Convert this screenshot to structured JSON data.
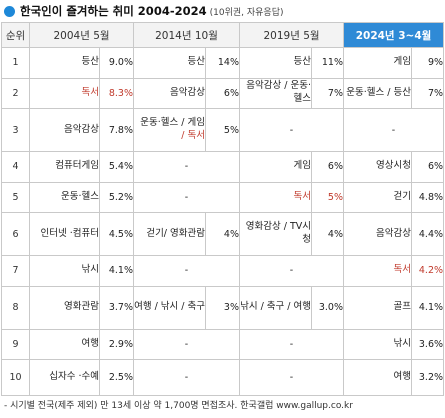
{
  "title": {
    "main": "한국인이 즐겨하는 취미 2004-2024",
    "sub": "(10위권, 자유응답)"
  },
  "colors": {
    "accent": "#2f8ad6",
    "highlight_text": "#c0392b",
    "title_dot": "#1e88d8"
  },
  "table": {
    "headers": [
      "순위",
      "2004년 5월",
      "2014년 10월",
      "2019년 5월",
      "2024년 3~4월"
    ],
    "rows": [
      {
        "rank": "1",
        "c2004": {
          "name": "등산",
          "pct": "9.0%"
        },
        "c2014": {
          "name": "등산",
          "pct": "14%"
        },
        "c2019": {
          "name": "등산",
          "pct": "11%"
        },
        "c2024": {
          "name": "게임",
          "pct": "9%"
        }
      },
      {
        "rank": "2",
        "c2004": {
          "name": "독서",
          "pct": "8.3%",
          "red": true
        },
        "c2014": {
          "name": "음악감상",
          "pct": "6%"
        },
        "c2019": {
          "name": "음악감상 / 운동·헬스",
          "pct": "7%"
        },
        "c2024": {
          "name": "운동·헬스 / 등산",
          "pct": "7%"
        }
      },
      {
        "rank": "3",
        "c2004": {
          "name": "음악감상",
          "pct": "7.8%"
        },
        "c2014": {
          "name": "운동·헬스 / 게임",
          "name_red": "/ 독서",
          "pct": "5%"
        },
        "c2019": {
          "dash": "-"
        },
        "c2024": {
          "dash": "-"
        }
      },
      {
        "rank": "4",
        "c2004": {
          "name": "컴퓨터게임",
          "pct": "5.4%"
        },
        "c2014": {
          "dash": "-"
        },
        "c2019": {
          "name": "게임",
          "pct": "6%"
        },
        "c2024": {
          "name": "영상시청",
          "pct": "6%"
        }
      },
      {
        "rank": "5",
        "c2004": {
          "name": "운동·헬스",
          "pct": "5.2%"
        },
        "c2014": {
          "dash": "-"
        },
        "c2019": {
          "name": "독서",
          "pct": "5%",
          "red": true
        },
        "c2024": {
          "name": "걷기",
          "pct": "4.8%"
        }
      },
      {
        "rank": "6",
        "c2004": {
          "name": "인터넷 ·컴퓨터",
          "pct": "4.5%"
        },
        "c2014": {
          "name": "걷기/ 영화관람",
          "pct": "4%"
        },
        "c2019": {
          "name": "영화감상 / TV시청",
          "pct": "4%"
        },
        "c2024": {
          "name": "음악감상",
          "pct": "4.4%"
        }
      },
      {
        "rank": "7",
        "c2004": {
          "name": "낚시",
          "pct": "4.1%"
        },
        "c2014": {
          "dash": "-"
        },
        "c2019": {
          "dash": "-"
        },
        "c2024": {
          "name": "독서",
          "pct": "4.2%",
          "red": true
        }
      },
      {
        "rank": "8",
        "c2004": {
          "name": "영화관람",
          "pct": "3.7%"
        },
        "c2014": {
          "name": "여행 / 낚시 / 축구",
          "pct": "3%"
        },
        "c2019": {
          "name": "낚시 / 축구 / 여행",
          "pct": "3.0%"
        },
        "c2024": {
          "name": "골프",
          "pct": "4.1%"
        }
      },
      {
        "rank": "9",
        "c2004": {
          "name": "여행",
          "pct": "2.9%"
        },
        "c2014": {
          "dash": "-"
        },
        "c2019": {
          "dash": "-"
        },
        "c2024": {
          "name": "낚시",
          "pct": "3.6%"
        }
      },
      {
        "rank": "10",
        "c2004": {
          "name": "십자수 ·수예",
          "pct": "2.5%"
        },
        "c2014": {
          "dash": "-"
        },
        "c2019": {
          "dash": "-"
        },
        "c2024": {
          "name": "여행",
          "pct": "3.2%"
        }
      }
    ]
  },
  "footer": "- 시기별 전국(제주 제외) 만 13세 이상 약 1,700명 면접조사. 한국갤럽 www.gallup.co.kr"
}
